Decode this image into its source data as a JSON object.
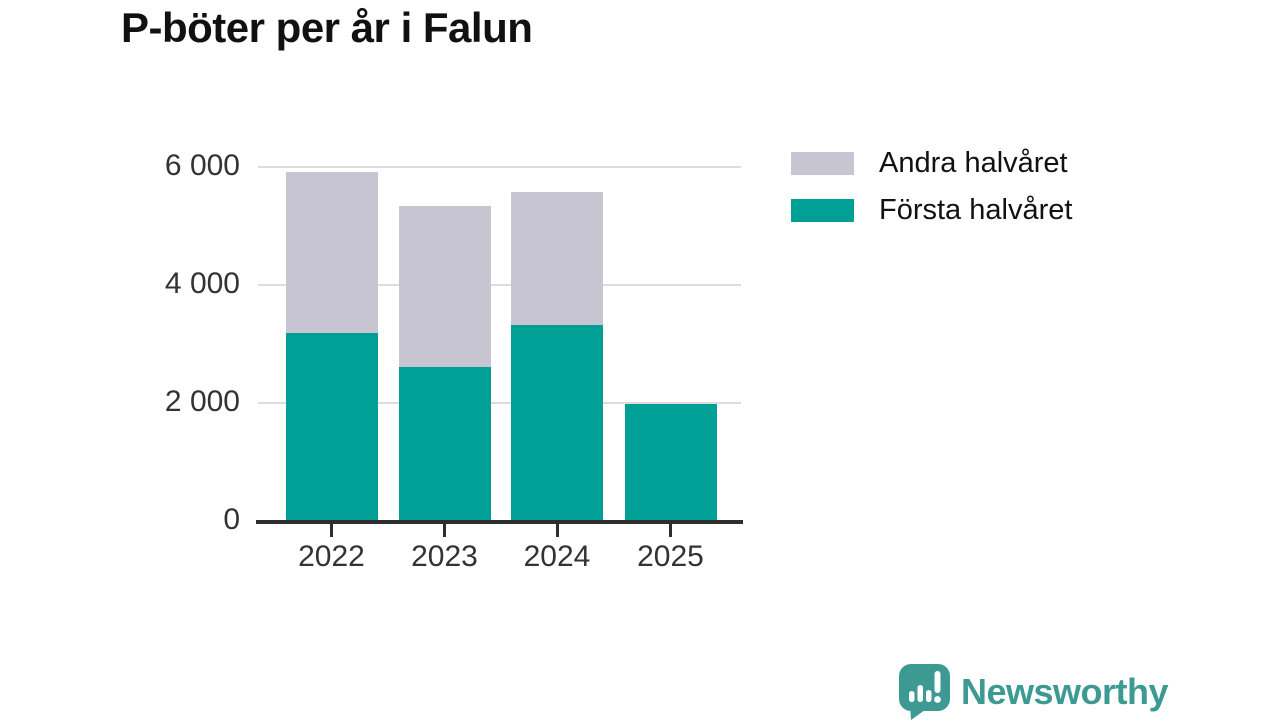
{
  "chart_data": {
    "type": "bar",
    "stacked": true,
    "title": "P-böter per år i Falun",
    "categories": [
      "2022",
      "2023",
      "2024",
      "2025"
    ],
    "series": [
      {
        "name": "Första halvåret",
        "color": "#00a096",
        "values": [
          3190,
          2610,
          3320,
          1980
        ]
      },
      {
        "name": "Andra halvåret",
        "color": "#c7c5d2",
        "values": [
          2720,
          2720,
          2240,
          0
        ]
      }
    ],
    "totals": [
      5910,
      5330,
      5560,
      1980
    ],
    "xlabel": "",
    "ylabel": "",
    "ylim": [
      0,
      6000
    ],
    "yticks": [
      0,
      2000,
      4000,
      6000
    ],
    "ytick_labels": [
      "0",
      "2 000",
      "4 000",
      "6 000"
    ],
    "grid": true,
    "legend_position": "top-right"
  },
  "legend": {
    "items": [
      {
        "label": "Andra halvåret",
        "series_index": 1
      },
      {
        "label": "Första halvåret",
        "series_index": 0
      }
    ]
  },
  "branding": {
    "logo_text": "Newsworthy",
    "logo_color": "#3d9a93"
  },
  "colors": {
    "axis": "#2e2e2e",
    "gridline": "#dcdcdc",
    "tick_text": "#333333",
    "title_text": "#111111"
  }
}
